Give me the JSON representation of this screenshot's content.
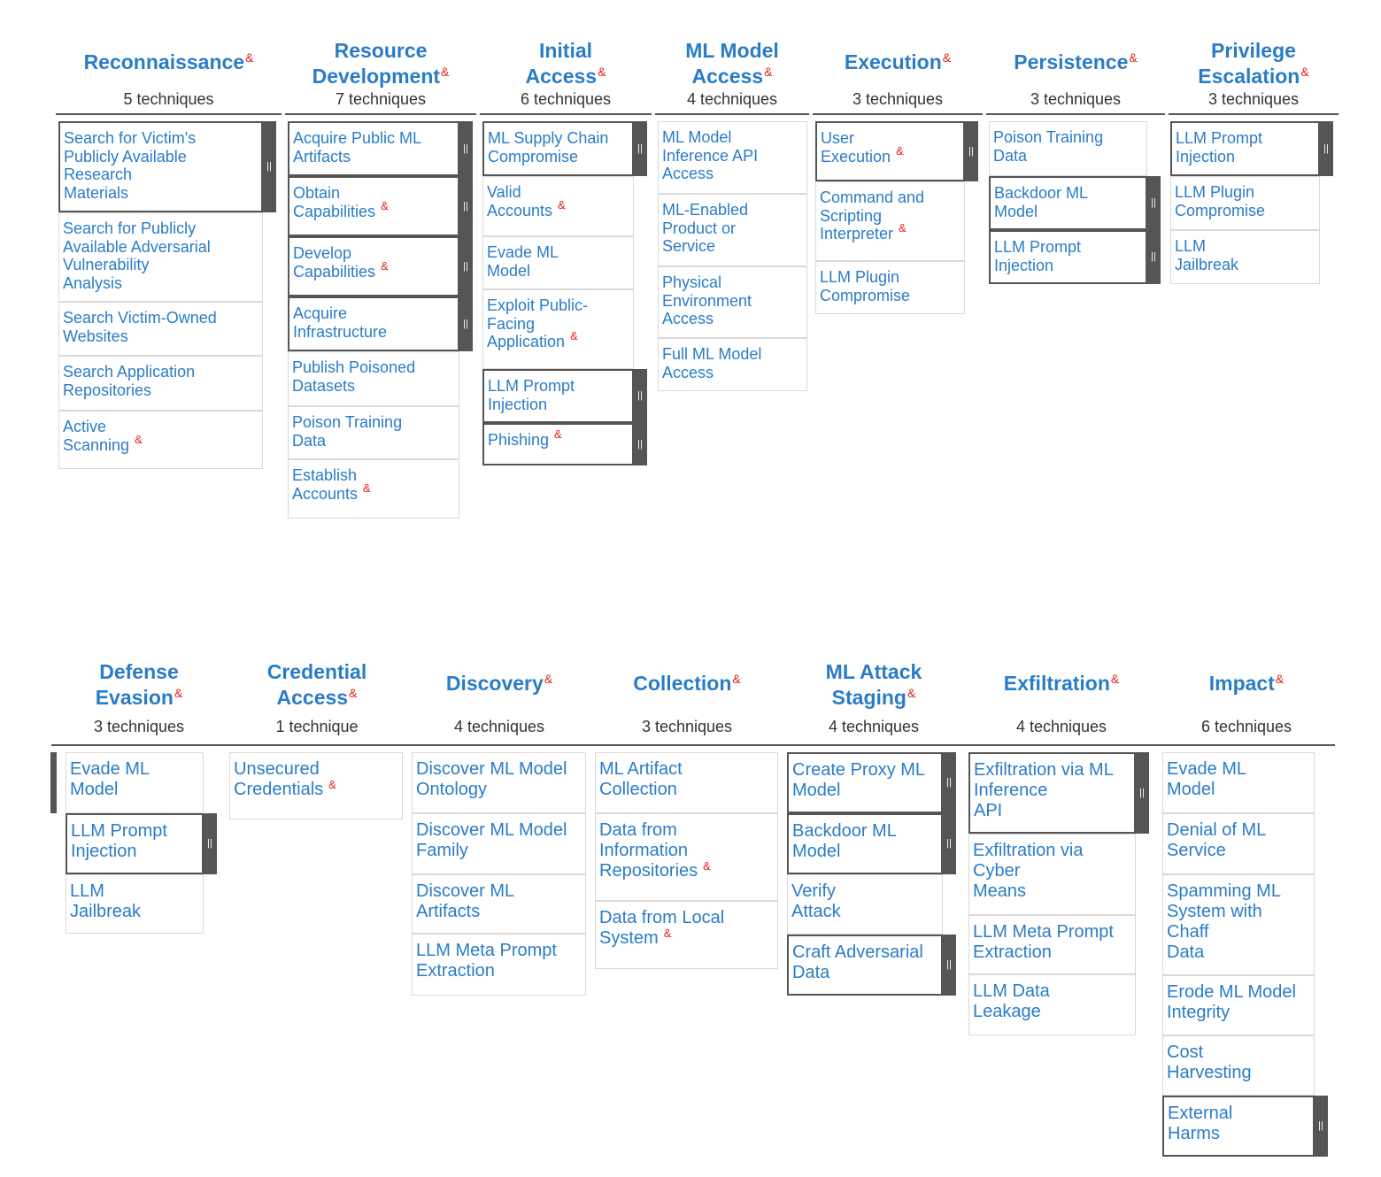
{
  "rows": [
    {
      "tactics": [
        {
          "name_lines": [
            "Reconnaissance"
          ],
          "count": "5 techniques",
          "techniques": [
            {
              "lines": [
                "Search for Victim's",
                "Publicly Available",
                "Research",
                "Materials"
              ],
              "amp": false,
              "expanded": true
            },
            {
              "lines": [
                "Search for Publicly",
                "Available Adversarial",
                "Vulnerability",
                "Analysis"
              ],
              "amp": false,
              "expanded": false
            },
            {
              "lines": [
                "Search Victim-Owned",
                "Websites"
              ],
              "amp": false,
              "expanded": false
            },
            {
              "lines": [
                "Search Application",
                "Repositories"
              ],
              "amp": false,
              "expanded": false
            },
            {
              "lines": [
                "Active",
                "Scanning"
              ],
              "amp": true,
              "expanded": false
            }
          ]
        },
        {
          "name_lines": [
            "Resource",
            "Development"
          ],
          "count": "7 techniques",
          "techniques": [
            {
              "lines": [
                "Acquire Public ML",
                "Artifacts"
              ],
              "amp": false,
              "expanded": true
            },
            {
              "lines": [
                "Obtain",
                "Capabilities"
              ],
              "amp": true,
              "expanded": true
            },
            {
              "lines": [
                "Develop",
                "Capabilities"
              ],
              "amp": true,
              "expanded": true
            },
            {
              "lines": [
                "Acquire",
                "Infrastructure"
              ],
              "amp": false,
              "expanded": true
            },
            {
              "lines": [
                "Publish Poisoned",
                "Datasets"
              ],
              "amp": false,
              "expanded": false
            },
            {
              "lines": [
                "Poison Training",
                "Data"
              ],
              "amp": false,
              "expanded": false
            },
            {
              "lines": [
                "Establish",
                "Accounts"
              ],
              "amp": true,
              "expanded": false
            }
          ]
        },
        {
          "name_lines": [
            "Initial",
            "Access"
          ],
          "count": "6 techniques",
          "techniques": [
            {
              "lines": [
                "ML Supply Chain",
                "Compromise"
              ],
              "amp": false,
              "expanded": true
            },
            {
              "lines": [
                "Valid",
                "Accounts"
              ],
              "amp": true,
              "expanded": false
            },
            {
              "lines": [
                "Evade ML",
                "Model"
              ],
              "amp": false,
              "expanded": false
            },
            {
              "lines": [
                "Exploit Public-",
                "Facing",
                "Application"
              ],
              "amp": true,
              "expanded": false
            },
            {
              "lines": [
                "LLM Prompt",
                "Injection"
              ],
              "amp": false,
              "expanded": true
            },
            {
              "lines": [
                "Phishing"
              ],
              "amp": true,
              "expanded": true
            }
          ]
        },
        {
          "name_lines": [
            "ML Model",
            "Access"
          ],
          "count": "4 techniques",
          "techniques": [
            {
              "lines": [
                "ML Model",
                "Inference API",
                "Access"
              ],
              "amp": false,
              "expanded": false
            },
            {
              "lines": [
                "ML-Enabled",
                "Product or",
                "Service"
              ],
              "amp": false,
              "expanded": false
            },
            {
              "lines": [
                "Physical",
                "Environment",
                "Access"
              ],
              "amp": false,
              "expanded": false
            },
            {
              "lines": [
                "Full ML Model",
                "Access"
              ],
              "amp": false,
              "expanded": false
            }
          ]
        },
        {
          "name_lines": [
            "Execution"
          ],
          "count": "3 techniques",
          "techniques": [
            {
              "lines": [
                "User",
                "Execution"
              ],
              "amp": true,
              "expanded": true
            },
            {
              "lines": [
                "Command and",
                "Scripting",
                "Interpreter"
              ],
              "amp": true,
              "expanded": false
            },
            {
              "lines": [
                "LLM Plugin",
                "Compromise"
              ],
              "amp": false,
              "expanded": false
            }
          ]
        },
        {
          "name_lines": [
            "Persistence"
          ],
          "count": "3 techniques",
          "techniques": [
            {
              "lines": [
                "Poison Training",
                "Data"
              ],
              "amp": false,
              "expanded": false
            },
            {
              "lines": [
                "Backdoor ML",
                "Model"
              ],
              "amp": false,
              "expanded": true
            },
            {
              "lines": [
                "LLM Prompt",
                "Injection"
              ],
              "amp": false,
              "expanded": true
            }
          ]
        },
        {
          "name_lines": [
            "Privilege",
            "Escalation"
          ],
          "count": "3 techniques",
          "techniques": [
            {
              "lines": [
                "LLM Prompt",
                "Injection"
              ],
              "amp": false,
              "expanded": true
            },
            {
              "lines": [
                "LLM Plugin",
                "Compromise"
              ],
              "amp": false,
              "expanded": false
            },
            {
              "lines": [
                "LLM",
                "Jailbreak"
              ],
              "amp": false,
              "expanded": false
            }
          ]
        }
      ]
    },
    {
      "tactics": [
        {
          "name_lines": [
            "Defense",
            "Evasion"
          ],
          "count": "3 techniques",
          "techniques": [
            {
              "lines": [
                "Evade ML",
                "Model"
              ],
              "amp": false,
              "expanded": false
            },
            {
              "lines": [
                "LLM Prompt",
                "Injection"
              ],
              "amp": false,
              "expanded": true
            },
            {
              "lines": [
                "LLM",
                "Jailbreak"
              ],
              "amp": false,
              "expanded": false
            }
          ]
        },
        {
          "name_lines": [
            "Credential",
            "Access"
          ],
          "count": "1 technique",
          "techniques": [
            {
              "lines": [
                "Unsecured",
                "Credentials"
              ],
              "amp": true,
              "expanded": false
            }
          ]
        },
        {
          "name_lines": [
            "Discovery"
          ],
          "count": "4 techniques",
          "techniques": [
            {
              "lines": [
                "Discover ML Model",
                "Ontology"
              ],
              "amp": false,
              "expanded": false
            },
            {
              "lines": [
                "Discover ML Model",
                "Family"
              ],
              "amp": false,
              "expanded": false
            },
            {
              "lines": [
                "Discover ML",
                "Artifacts"
              ],
              "amp": false,
              "expanded": false
            },
            {
              "lines": [
                "LLM Meta Prompt",
                "Extraction"
              ],
              "amp": false,
              "expanded": false
            }
          ]
        },
        {
          "name_lines": [
            "Collection"
          ],
          "count": "3 techniques",
          "techniques": [
            {
              "lines": [
                "ML Artifact",
                "Collection"
              ],
              "amp": false,
              "expanded": false
            },
            {
              "lines": [
                "Data from",
                "Information",
                "Repositories"
              ],
              "amp": true,
              "expanded": false
            },
            {
              "lines": [
                "Data from Local",
                "System"
              ],
              "amp": true,
              "expanded": false
            }
          ]
        },
        {
          "name_lines": [
            "ML Attack",
            "Staging"
          ],
          "count": "4 techniques",
          "techniques": [
            {
              "lines": [
                "Create Proxy ML",
                "Model"
              ],
              "amp": false,
              "expanded": true
            },
            {
              "lines": [
                "Backdoor ML",
                "Model"
              ],
              "amp": false,
              "expanded": true
            },
            {
              "lines": [
                "Verify",
                "Attack"
              ],
              "amp": false,
              "expanded": false
            },
            {
              "lines": [
                "Craft Adversarial",
                "Data"
              ],
              "amp": false,
              "expanded": true
            }
          ]
        },
        {
          "name_lines": [
            "Exfiltration"
          ],
          "count": "4 techniques",
          "techniques": [
            {
              "lines": [
                "Exfiltration via ML",
                "Inference",
                "API"
              ],
              "amp": false,
              "expanded": true
            },
            {
              "lines": [
                "Exfiltration via",
                "Cyber",
                "Means"
              ],
              "amp": false,
              "expanded": false
            },
            {
              "lines": [
                "LLM Meta Prompt",
                "Extraction"
              ],
              "amp": false,
              "expanded": false
            },
            {
              "lines": [
                "LLM Data",
                "Leakage"
              ],
              "amp": false,
              "expanded": false
            }
          ]
        },
        {
          "name_lines": [
            "Impact"
          ],
          "count": "6 techniques",
          "techniques": [
            {
              "lines": [
                "Evade ML",
                "Model"
              ],
              "amp": false,
              "expanded": false
            },
            {
              "lines": [
                "Denial of ML",
                "Service"
              ],
              "amp": false,
              "expanded": false
            },
            {
              "lines": [
                "Spamming ML",
                "System with",
                "Chaff",
                "Data"
              ],
              "amp": false,
              "expanded": false
            },
            {
              "lines": [
                "Erode ML Model",
                "Integrity"
              ],
              "amp": false,
              "expanded": false
            },
            {
              "lines": [
                "Cost",
                "Harvesting"
              ],
              "amp": false,
              "expanded": false
            },
            {
              "lines": [
                "External",
                "Harms"
              ],
              "amp": false,
              "expanded": true
            }
          ]
        }
      ]
    }
  ],
  "colors": {
    "link": "#2a7cc7",
    "accent": "#e2231a",
    "handle": "#555555",
    "border": "#d9d9d9"
  },
  "handle_glyph": "⏸",
  "ampersand_glyph": "&"
}
